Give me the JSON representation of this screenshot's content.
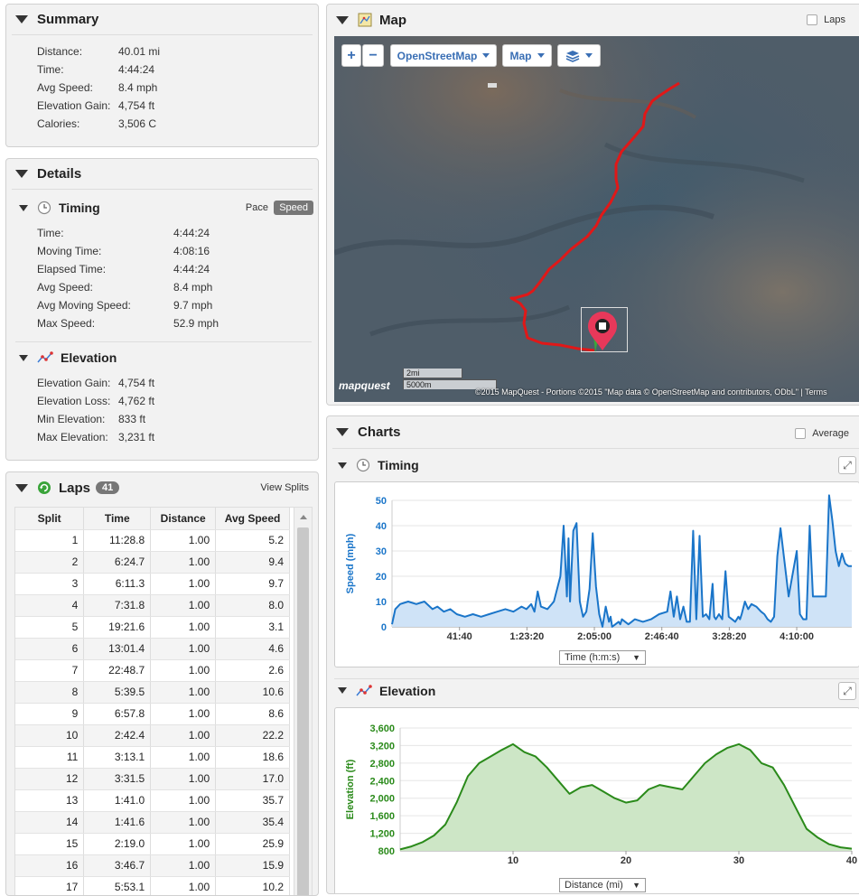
{
  "summary": {
    "title": "Summary",
    "rows": [
      {
        "label": "Distance:",
        "value": "40.01 mi"
      },
      {
        "label": "Time:",
        "value": "4:44:24"
      },
      {
        "label": "Avg Speed:",
        "value": "8.4 mph"
      },
      {
        "label": "Elevation Gain:",
        "value": "4,754 ft"
      },
      {
        "label": "Calories:",
        "value": "3,506 C"
      }
    ]
  },
  "details": {
    "title": "Details",
    "timing": {
      "title": "Timing",
      "pace_label": "Pace",
      "speed_label": "Speed",
      "rows": [
        {
          "label": "Time:",
          "value": "4:44:24"
        },
        {
          "label": "Moving Time:",
          "value": "4:08:16"
        },
        {
          "label": "Elapsed Time:",
          "value": "4:44:24"
        },
        {
          "label": "Avg Speed:",
          "value": "8.4 mph"
        },
        {
          "label": "Avg Moving Speed:",
          "value": "9.7 mph"
        },
        {
          "label": "Max Speed:",
          "value": "52.9 mph"
        }
      ]
    },
    "elevation": {
      "title": "Elevation",
      "rows": [
        {
          "label": "Elevation Gain:",
          "value": "4,754 ft"
        },
        {
          "label": "Elevation Loss:",
          "value": "4,762 ft"
        },
        {
          "label": "Min Elevation:",
          "value": "833 ft"
        },
        {
          "label": "Max Elevation:",
          "value": "3,231 ft"
        }
      ]
    }
  },
  "laps": {
    "title": "Laps",
    "count": "41",
    "view_splits": "View Splits",
    "columns": [
      "Split",
      "Time",
      "Distance",
      "Avg Speed"
    ],
    "rows": [
      [
        "1",
        "11:28.8",
        "1.00",
        "5.2"
      ],
      [
        "2",
        "6:24.7",
        "1.00",
        "9.4"
      ],
      [
        "3",
        "6:11.3",
        "1.00",
        "9.7"
      ],
      [
        "4",
        "7:31.8",
        "1.00",
        "8.0"
      ],
      [
        "5",
        "19:21.6",
        "1.00",
        "3.1"
      ],
      [
        "6",
        "13:01.4",
        "1.00",
        "4.6"
      ],
      [
        "7",
        "22:48.7",
        "1.00",
        "2.6"
      ],
      [
        "8",
        "5:39.5",
        "1.00",
        "10.6"
      ],
      [
        "9",
        "6:57.8",
        "1.00",
        "8.6"
      ],
      [
        "10",
        "2:42.4",
        "1.00",
        "22.2"
      ],
      [
        "11",
        "3:13.1",
        "1.00",
        "18.6"
      ],
      [
        "12",
        "3:31.5",
        "1.00",
        "17.0"
      ],
      [
        "13",
        "1:41.0",
        "1.00",
        "35.7"
      ],
      [
        "14",
        "1:41.6",
        "1.00",
        "35.4"
      ],
      [
        "15",
        "2:19.0",
        "1.00",
        "25.9"
      ],
      [
        "16",
        "3:46.7",
        "1.00",
        "15.9"
      ],
      [
        "17",
        "5:53.1",
        "1.00",
        "10.2"
      ]
    ]
  },
  "map": {
    "title": "Map",
    "laps_label": "Laps",
    "zoom_in": "+",
    "zoom_out": "−",
    "layer_select": "OpenStreetMap",
    "type_select": "Map",
    "scale_mi": "2mi",
    "scale_m": "5000m",
    "logo": "mapquest",
    "attribution": "©2015 MapQuest  -  Portions ©2015 \"Map data © OpenStreetMap and contributors, ODbL\" | Terms"
  },
  "charts": {
    "title": "Charts",
    "average_label": "Average",
    "timing": {
      "title": "Timing",
      "x_select": "Time (h:m:s)"
    },
    "elevation": {
      "title": "Elevation",
      "x_select": "Distance (mi)"
    }
  },
  "chart_data": [
    {
      "type": "area",
      "ylabel": "Speed (mph)",
      "xlabel": "Time (h:m:s)",
      "ylim": [
        0,
        50
      ],
      "yticks": [
        "50",
        "40",
        "30",
        "20",
        "10",
        "0"
      ],
      "xticks": [
        "41:40",
        "1:23:20",
        "2:05:00",
        "2:46:40",
        "3:28:20",
        "4:10:00"
      ],
      "color": "#1a75c9",
      "fill": "#cfe3f7",
      "x_minutes": [
        0,
        2,
        5,
        10,
        15,
        20,
        25,
        28,
        32,
        36,
        40,
        45,
        50,
        55,
        60,
        65,
        70,
        75,
        80,
        83,
        86,
        88,
        90,
        92,
        96,
        100,
        104,
        106,
        108,
        109,
        110,
        112,
        114,
        116,
        118,
        120,
        122,
        124,
        126,
        128,
        130,
        132,
        134,
        135,
        136,
        138,
        140,
        141,
        142,
        144,
        146,
        148,
        150,
        155,
        160,
        165,
        170,
        172,
        174,
        176,
        178,
        180,
        182,
        184,
        186,
        188,
        190,
        192,
        194,
        196,
        198,
        199,
        200,
        202,
        204,
        206,
        208,
        210,
        212,
        214,
        215,
        216,
        218,
        220,
        222,
        225,
        228,
        230,
        232,
        234,
        236,
        238,
        240,
        245,
        250,
        252,
        254,
        256,
        258,
        260,
        262,
        265,
        268,
        270,
        272,
        274,
        276,
        278,
        280,
        282,
        284
      ],
      "values": [
        1,
        7,
        9,
        10,
        9,
        10,
        7,
        8,
        6,
        7,
        5,
        4,
        5,
        4,
        5,
        6,
        7,
        6,
        8,
        7,
        9,
        6,
        14,
        8,
        7,
        10,
        20,
        40,
        12,
        35,
        10,
        38,
        41,
        10,
        4,
        6,
        15,
        37,
        16,
        5,
        0,
        8,
        2,
        4,
        0,
        1,
        2,
        1,
        3,
        2,
        1,
        2,
        3,
        2,
        3,
        5,
        6,
        14,
        4,
        12,
        3,
        8,
        2,
        2,
        38,
        3,
        36,
        4,
        5,
        3,
        17,
        4,
        3,
        5,
        3,
        22,
        4,
        3,
        2,
        4,
        3,
        5,
        10,
        7,
        9,
        8,
        6,
        5,
        3,
        2,
        4,
        28,
        39,
        12,
        30,
        5,
        3,
        3,
        40,
        12,
        12,
        12,
        12,
        52,
        42,
        30,
        24,
        29,
        25,
        24,
        24
      ]
    },
    {
      "type": "area",
      "ylabel": "Elevation (ft)",
      "xlabel": "Distance (mi)",
      "ylim": [
        800,
        3600
      ],
      "xlim": [
        0,
        40
      ],
      "yticks": [
        "3,600",
        "3,200",
        "2,800",
        "2,400",
        "2,000",
        "1,600",
        "1,200",
        "800"
      ],
      "xticks": [
        "10",
        "20",
        "30",
        "40"
      ],
      "color": "#2a8a1a",
      "fill": "#cde6c6",
      "x": [
        0,
        1,
        2,
        3,
        4,
        5,
        6,
        7,
        8,
        9,
        10,
        11,
        12,
        13,
        14,
        15,
        16,
        17,
        18,
        19,
        20,
        21,
        22,
        23,
        24,
        25,
        26,
        27,
        28,
        29,
        30,
        31,
        32,
        33,
        34,
        35,
        36,
        37,
        38,
        39,
        40
      ],
      "values": [
        833,
        900,
        1000,
        1150,
        1400,
        1900,
        2500,
        2800,
        2950,
        3100,
        3231,
        3050,
        2950,
        2700,
        2400,
        2100,
        2250,
        2300,
        2150,
        2000,
        1900,
        1950,
        2200,
        2300,
        2250,
        2200,
        2500,
        2800,
        3000,
        3150,
        3231,
        3100,
        2800,
        2700,
        2300,
        1800,
        1300,
        1100,
        950,
        880,
        850
      ]
    }
  ]
}
